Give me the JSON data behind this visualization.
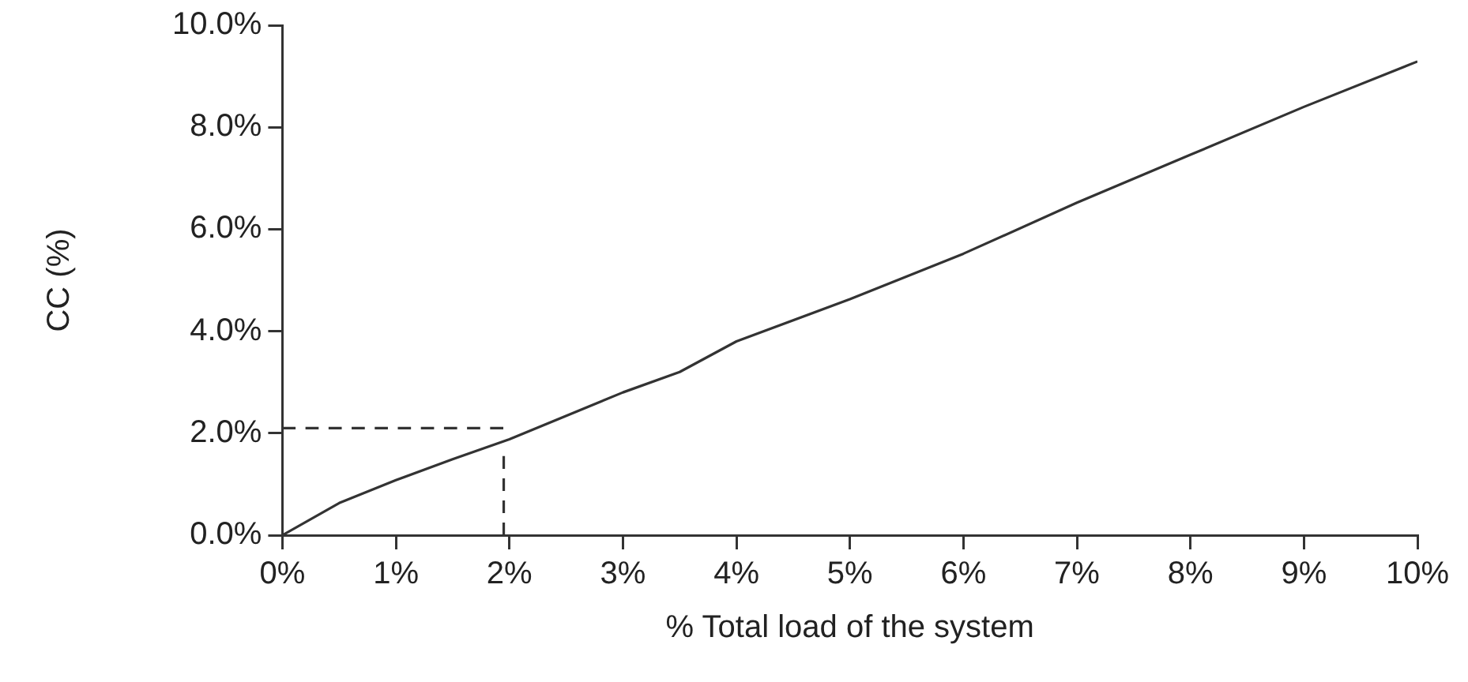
{
  "chart_data": {
    "type": "line",
    "xlabel": "% Total load of the system",
    "ylabel": "CC (%)",
    "xlim": [
      0,
      10
    ],
    "ylim": [
      0,
      10
    ],
    "xticks": [
      {
        "value": 0,
        "label": "0%"
      },
      {
        "value": 1,
        "label": "1%"
      },
      {
        "value": 2,
        "label": "2%"
      },
      {
        "value": 3,
        "label": "3%"
      },
      {
        "value": 4,
        "label": "4%"
      },
      {
        "value": 5,
        "label": "5%"
      },
      {
        "value": 6,
        "label": "6%"
      },
      {
        "value": 7,
        "label": "7%"
      },
      {
        "value": 8,
        "label": "8%"
      },
      {
        "value": 9,
        "label": "9%"
      },
      {
        "value": 10,
        "label": "10%"
      }
    ],
    "yticks": [
      {
        "value": 0,
        "label": "0.0%"
      },
      {
        "value": 2,
        "label": "2.0%"
      },
      {
        "value": 4,
        "label": "4.0%"
      },
      {
        "value": 6,
        "label": "6.0%"
      },
      {
        "value": 8,
        "label": "8.0%"
      },
      {
        "value": 10,
        "label": "10.0%"
      }
    ],
    "grid": false,
    "legend": false,
    "marker": "none",
    "series": [
      {
        "color": "#333333",
        "line_style": "solid",
        "x": [
          0,
          0.5,
          1,
          1.5,
          2,
          3,
          3.5,
          4,
          5,
          6,
          7,
          8,
          9,
          10
        ],
        "values": [
          0,
          0.63,
          1.08,
          1.49,
          1.88,
          2.8,
          3.2,
          3.8,
          4.63,
          5.52,
          6.52,
          7.46,
          8.4,
          9.29
        ]
      },
      {
        "color": "#333333",
        "line_style": "dashed",
        "x": [
          0,
          1.95
        ],
        "values": [
          2.1,
          2.1
        ]
      },
      {
        "color": "#333333",
        "line_style": "dashed",
        "x": [
          1.95,
          1.95
        ],
        "values": [
          1.55,
          0
        ]
      }
    ]
  }
}
